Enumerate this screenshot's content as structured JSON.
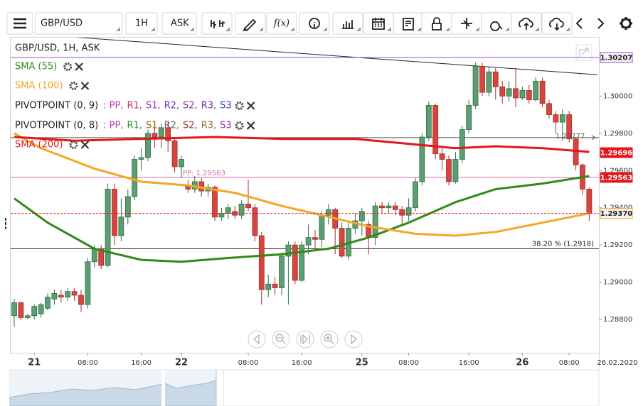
{
  "toolbar": {
    "symbol": "GBP/USD",
    "timeframe": "1H",
    "price_type": "ASK",
    "function_button": "f(x)"
  },
  "chart_data": {
    "type": "candlestick",
    "title": "GBP/USD, 1H, ASK",
    "categories": [
      null,
      null,
      null,
      "21",
      null,
      null,
      null,
      null,
      null,
      null,
      null,
      "08:00",
      null,
      null,
      null,
      null,
      null,
      null,
      null,
      "16:00",
      null,
      null,
      null,
      null,
      null,
      "22",
      null,
      null,
      null,
      null,
      null,
      null,
      null,
      null,
      null,
      "08:00",
      null,
      null,
      null,
      null,
      null,
      null,
      null,
      "16:00",
      null,
      null,
      null,
      null,
      null,
      null,
      null,
      null,
      "25",
      null,
      null,
      null,
      null,
      null,
      null,
      "08:00",
      null,
      null,
      null,
      null,
      null,
      null,
      null,
      null,
      "16:00",
      null,
      null,
      null,
      null,
      null,
      null,
      null,
      "26",
      null,
      null,
      null,
      null,
      null,
      null,
      "08:00",
      null,
      null,
      null
    ],
    "date_label": "26.02.2020",
    "candles": {
      "up_color": "#5c9e72",
      "down_color": "#d6453e",
      "open": [
        1.2882,
        1.2889,
        1.2881,
        1.2882,
        1.2883,
        1.2886,
        1.2891,
        1.2893,
        1.2892,
        1.2895,
        1.2893,
        1.2888,
        1.2911,
        1.2918,
        1.2909,
        1.295,
        1.2925,
        1.2935,
        1.2946,
        1.2966,
        1.2967,
        1.298,
        1.2978,
        1.2983,
        1.2976,
        1.2962,
        1.2952,
        1.295,
        1.2954,
        1.2949,
        1.2951,
        1.2935,
        1.2937,
        1.2938,
        1.2936,
        1.2942,
        1.294,
        1.2925,
        1.2896,
        1.2899,
        1.2897,
        1.2914,
        1.292,
        1.2901,
        1.292,
        1.2924,
        1.2923,
        1.2936,
        1.2939,
        1.2929,
        1.2914,
        1.2929,
        1.2933,
        1.2931,
        1.2924,
        1.2941,
        1.294,
        1.2941,
        1.2939,
        1.2936,
        1.294,
        1.2954,
        1.2978,
        1.2995,
        1.2969,
        1.2966,
        1.2954,
        1.2966,
        1.2982,
        1.2995,
        1.3016,
        1.3002,
        1.3013,
        1.3005,
        1.3,
        1.3004,
        1.2999,
        1.3003,
        1.2998,
        1.3008,
        1.2996,
        1.299,
        1.2986,
        1.299,
        1.2977,
        1.2963,
        1.295
      ],
      "high": [
        1.2891,
        1.289,
        1.2883,
        1.2888,
        1.2889,
        1.2894,
        1.2896,
        1.2896,
        1.2897,
        1.2897,
        1.2896,
        1.2913,
        1.292,
        1.292,
        1.2953,
        1.2953,
        1.2945,
        1.295,
        1.2968,
        1.2972,
        1.2982,
        1.2985,
        1.2985,
        1.2986,
        1.2978,
        1.2968,
        1.2955,
        1.2957,
        1.2956,
        1.2953,
        1.2952,
        1.294,
        1.2942,
        1.2941,
        1.2944,
        1.2955,
        1.2942,
        1.2927,
        1.2904,
        1.2903,
        1.2916,
        1.2922,
        1.2922,
        1.2922,
        1.2931,
        1.2928,
        1.2938,
        1.2942,
        1.294,
        1.2932,
        1.2932,
        1.2937,
        1.294,
        1.2933,
        1.2943,
        1.2943,
        1.2943,
        1.2943,
        1.2941,
        1.2945,
        1.2956,
        1.298,
        1.2997,
        1.2996,
        1.2972,
        1.2968,
        1.297,
        1.2984,
        1.2998,
        1.3018,
        1.3018,
        1.3016,
        1.3015,
        1.3008,
        1.3008,
        1.3015,
        1.3005,
        1.3006,
        1.301,
        1.301,
        1.2998,
        1.2992,
        1.2993,
        1.2992,
        1.2978,
        1.2964,
        1.2951
      ],
      "low": [
        1.2876,
        1.288,
        1.288,
        1.288,
        1.2881,
        1.2885,
        1.2888,
        1.2889,
        1.289,
        1.289,
        1.2884,
        1.2886,
        1.2908,
        1.2907,
        1.2908,
        1.292,
        1.2922,
        1.2931,
        1.2944,
        1.296,
        1.2965,
        1.2972,
        1.2972,
        1.297,
        1.2959,
        1.2956,
        1.2948,
        1.2948,
        1.2946,
        1.2946,
        1.2933,
        1.2933,
        1.2934,
        1.2934,
        1.2934,
        1.2938,
        1.2922,
        1.2888,
        1.2892,
        1.2893,
        1.2893,
        1.2888,
        1.2899,
        1.29,
        1.2915,
        1.2918,
        1.2919,
        1.2931,
        1.2915,
        1.2913,
        1.2912,
        1.2926,
        1.2925,
        1.2915,
        1.292,
        1.2937,
        1.2937,
        1.2936,
        1.293,
        1.2933,
        1.2938,
        1.2952,
        1.2976,
        1.2966,
        1.296,
        1.2952,
        1.2953,
        1.2964,
        1.298,
        1.2993,
        1.3,
        1.3,
        1.2998,
        1.2996,
        1.2997,
        1.2994,
        1.2998,
        1.2996,
        1.2997,
        1.2994,
        1.2988,
        1.298,
        1.2976,
        1.2975,
        1.296,
        1.2947,
        1.2933
      ],
      "close": [
        1.2889,
        1.2881,
        1.2882,
        1.2887,
        1.2888,
        1.2892,
        1.2894,
        1.2892,
        1.2895,
        1.2893,
        1.2888,
        1.2911,
        1.2918,
        1.2909,
        1.295,
        1.2925,
        1.2935,
        1.2946,
        1.2966,
        1.2967,
        1.298,
        1.2978,
        1.2983,
        1.2976,
        1.2962,
        1.2966,
        1.295,
        1.2954,
        1.2949,
        1.2951,
        1.2935,
        1.2937,
        1.294,
        1.2936,
        1.2942,
        1.294,
        1.2925,
        1.2896,
        1.2899,
        1.2897,
        1.2914,
        1.292,
        1.2901,
        1.292,
        1.2924,
        1.2923,
        1.2936,
        1.2939,
        1.2929,
        1.2914,
        1.2929,
        1.2933,
        1.2938,
        1.2924,
        1.2941,
        1.294,
        1.2941,
        1.2939,
        1.2936,
        1.294,
        1.2954,
        1.2978,
        1.2995,
        1.2969,
        1.2966,
        1.2954,
        1.2966,
        1.2982,
        1.2995,
        1.3016,
        1.3002,
        1.3013,
        1.3005,
        1.3,
        1.3004,
        1.2999,
        1.3003,
        1.2998,
        1.3008,
        1.2996,
        1.299,
        1.2986,
        1.299,
        1.2977,
        1.2963,
        1.295,
        1.2937
      ]
    },
    "series": [
      {
        "name": "SMA (55)",
        "color": "#2f8a17",
        "x": [
          0,
          5,
          12,
          19,
          25,
          32,
          40,
          47,
          53,
          59,
          66,
          72,
          79,
          86
        ],
        "values": [
          1.2945,
          1.2932,
          1.2918,
          1.2912,
          1.2911,
          1.2913,
          1.2915,
          1.2918,
          1.2924,
          1.2932,
          1.2943,
          1.295,
          1.2953,
          1.2957
        ]
      },
      {
        "name": "SMA (100)",
        "color": "#f5a623",
        "x": [
          0,
          4,
          12,
          19,
          26,
          33,
          40,
          46,
          53,
          60,
          66,
          72,
          79,
          86
        ],
        "values": [
          1.298,
          1.2972,
          1.2961,
          1.2954,
          1.2952,
          1.2948,
          1.2941,
          1.2936,
          1.293,
          1.2926,
          1.2925,
          1.2927,
          1.2932,
          1.2937
        ]
      },
      {
        "name": "SMA (200)",
        "color": "#e5161b",
        "x": [
          0,
          9,
          19,
          30,
          40,
          51,
          60,
          66,
          72,
          79,
          86
        ],
        "values": [
          1.2978,
          1.2976,
          1.2977,
          1.2978,
          1.2977,
          1.2977,
          1.2974,
          1.2972,
          1.2973,
          1.2972,
          1.297
        ]
      }
    ],
    "pivot_legends": [
      {
        "name": "PIVOTPOINT (0, 9)",
        "items": [
          {
            "text": ": PP,",
            "color": "#c23bb5"
          },
          {
            "text": "R1,",
            "color": "#d0306a"
          },
          {
            "text": "S1,",
            "color": "#9a2fc4"
          },
          {
            "text": "R2,",
            "color": "#6a35c8"
          },
          {
            "text": "S2,",
            "color": "#8c2f9a"
          },
          {
            "text": "R3,",
            "color": "#5a3a9c"
          },
          {
            "text": "S3",
            "color": "#3340c8"
          }
        ]
      },
      {
        "name": "PIVOTPOINT (0, 8)",
        "items": [
          {
            "text": ": PP,",
            "color": "#c23bb5"
          },
          {
            "text": "R1,",
            "color": "#2e8f2e"
          },
          {
            "text": "S1,",
            "color": "#9a6a00"
          },
          {
            "text": "R2,",
            "color": "#666666"
          },
          {
            "text": "S2,",
            "color": "#9a3333"
          },
          {
            "text": "R3,",
            "color": "#9a6a33"
          },
          {
            "text": "S3",
            "color": "#8c2f9a"
          }
        ]
      }
    ],
    "trendline": {
      "x": [
        -0.5,
        87.2
      ],
      "values": [
        1.30341,
        1.30115
      ],
      "color": "#222222"
    },
    "levels": [
      {
        "value": 1.29563,
        "label": "PP: 1.29563",
        "color": "#d96aa8"
      },
      {
        "value": 1.29777,
        "label": "1.29777",
        "color": "#555555"
      },
      {
        "value": 1.2918,
        "label": "38.20 % (1.2918)",
        "color": "#222222"
      },
      {
        "value": 1.30207,
        "color": "#a04ad0"
      }
    ],
    "price_boxes": [
      {
        "value": 1.30207,
        "color": "#a04ad0",
        "filled": false
      },
      {
        "value": 1.29696,
        "color": "#e5161b",
        "filled": true
      },
      {
        "value": 1.29563,
        "color": "#e5161b",
        "filled": true
      },
      {
        "value": 1.2937,
        "label": "1.29370",
        "color": "#f5a623",
        "filled": false
      }
    ],
    "last_price_color": "#e5161b",
    "ylim": [
      1.28621,
      1.30314
    ],
    "yticks": [
      {
        "value": 1.3,
        "label": "1.30000"
      },
      {
        "value": 1.298,
        "label": "1.29800"
      },
      {
        "value": 1.296,
        "label": "1.29600"
      },
      {
        "value": 1.294,
        "label": "1.29400"
      },
      {
        "value": 1.292,
        "label": "1.29200"
      },
      {
        "value": 1.29,
        "label": "1.29000"
      },
      {
        "value": 1.288,
        "label": "1.28800"
      }
    ],
    "grid": false
  }
}
